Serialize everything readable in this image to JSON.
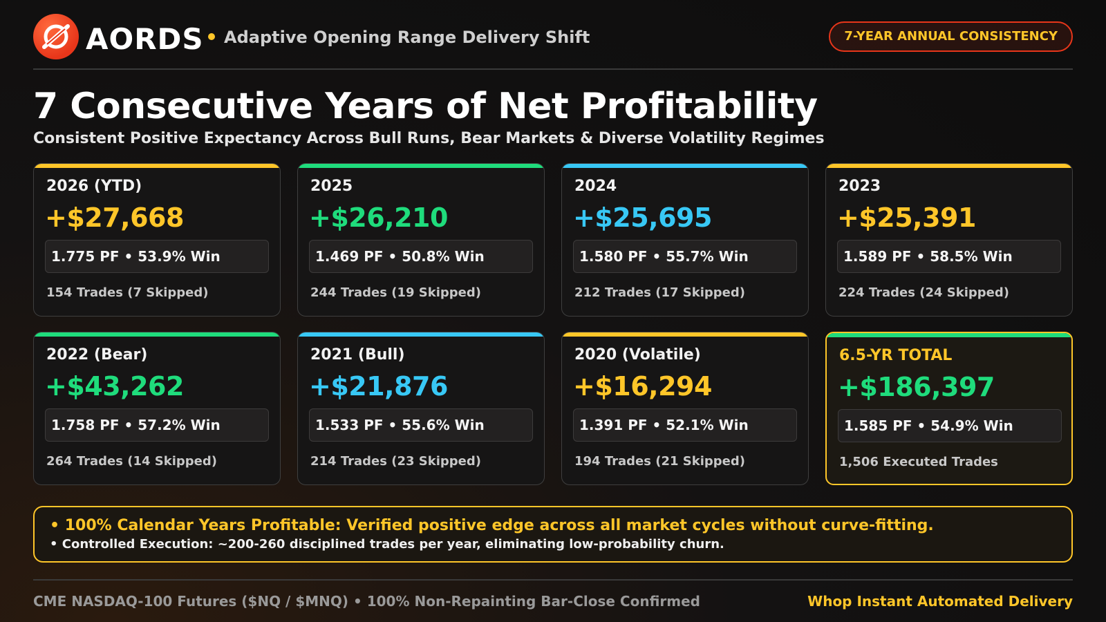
{
  "header": {
    "brand": "AORDS",
    "tagline": "Adaptive Opening Range Delivery Shift",
    "badge": "7-YEAR ANNUAL CONSISTENCY",
    "logo_icon": "slashed-circle-logo-icon"
  },
  "title": "7 Consecutive Years of Net Profitability",
  "subtitle": "Consistent Positive Expectancy Across Bull Runs, Bear Markets & Diverse Volatility Regimes",
  "cards": [
    {
      "year": "2026 (YTD)",
      "amount": "+$27,668",
      "stats": "1.775 PF • 53.9% Win",
      "trades": "154 Trades (7 Skipped)",
      "color": "#ffc629"
    },
    {
      "year": "2025",
      "amount": "+$26,210",
      "stats": "1.469 PF • 50.8% Win",
      "trades": "244 Trades (19 Skipped)",
      "color": "#1fdc7c"
    },
    {
      "year": "2024",
      "amount": "+$25,695",
      "stats": "1.580 PF • 55.7% Win",
      "trades": "212 Trades (17 Skipped)",
      "color": "#38c8f5"
    },
    {
      "year": "2023",
      "amount": "+$25,391",
      "stats": "1.589 PF • 58.5% Win",
      "trades": "224 Trades (24 Skipped)",
      "color": "#ffc629"
    },
    {
      "year": "2022 (Bear)",
      "amount": "+$43,262",
      "stats": "1.758 PF • 57.2% Win",
      "trades": "264 Trades (14 Skipped)",
      "color": "#1fdc7c"
    },
    {
      "year": "2021 (Bull)",
      "amount": "+$21,876",
      "stats": "1.533 PF • 55.6% Win",
      "trades": "214 Trades (23 Skipped)",
      "color": "#38c8f5"
    },
    {
      "year": "2020 (Volatile)",
      "amount": "+$16,294",
      "stats": "1.391 PF • 52.1% Win",
      "trades": "194 Trades (21 Skipped)",
      "color": "#ffc629"
    },
    {
      "year": "6.5-YR TOTAL",
      "amount": "+$186,397",
      "stats": "1.585 PF • 54.9% Win",
      "trades": "1,506 Executed Trades",
      "color": "#1fdc7c"
    }
  ],
  "notes": {
    "line1": "• 100% Calendar Years Profitable: Verified positive edge across all market cycles without curve-fitting.",
    "line2": "• Controlled Execution: ~200-260 disciplined trades per year, eliminating low-probability churn."
  },
  "footer": {
    "left": "CME NASDAQ-100 Futures ($NQ / $MNQ) • 100% Non-Repainting Bar-Close Confirmed",
    "right": "Whop Instant Automated Delivery"
  }
}
